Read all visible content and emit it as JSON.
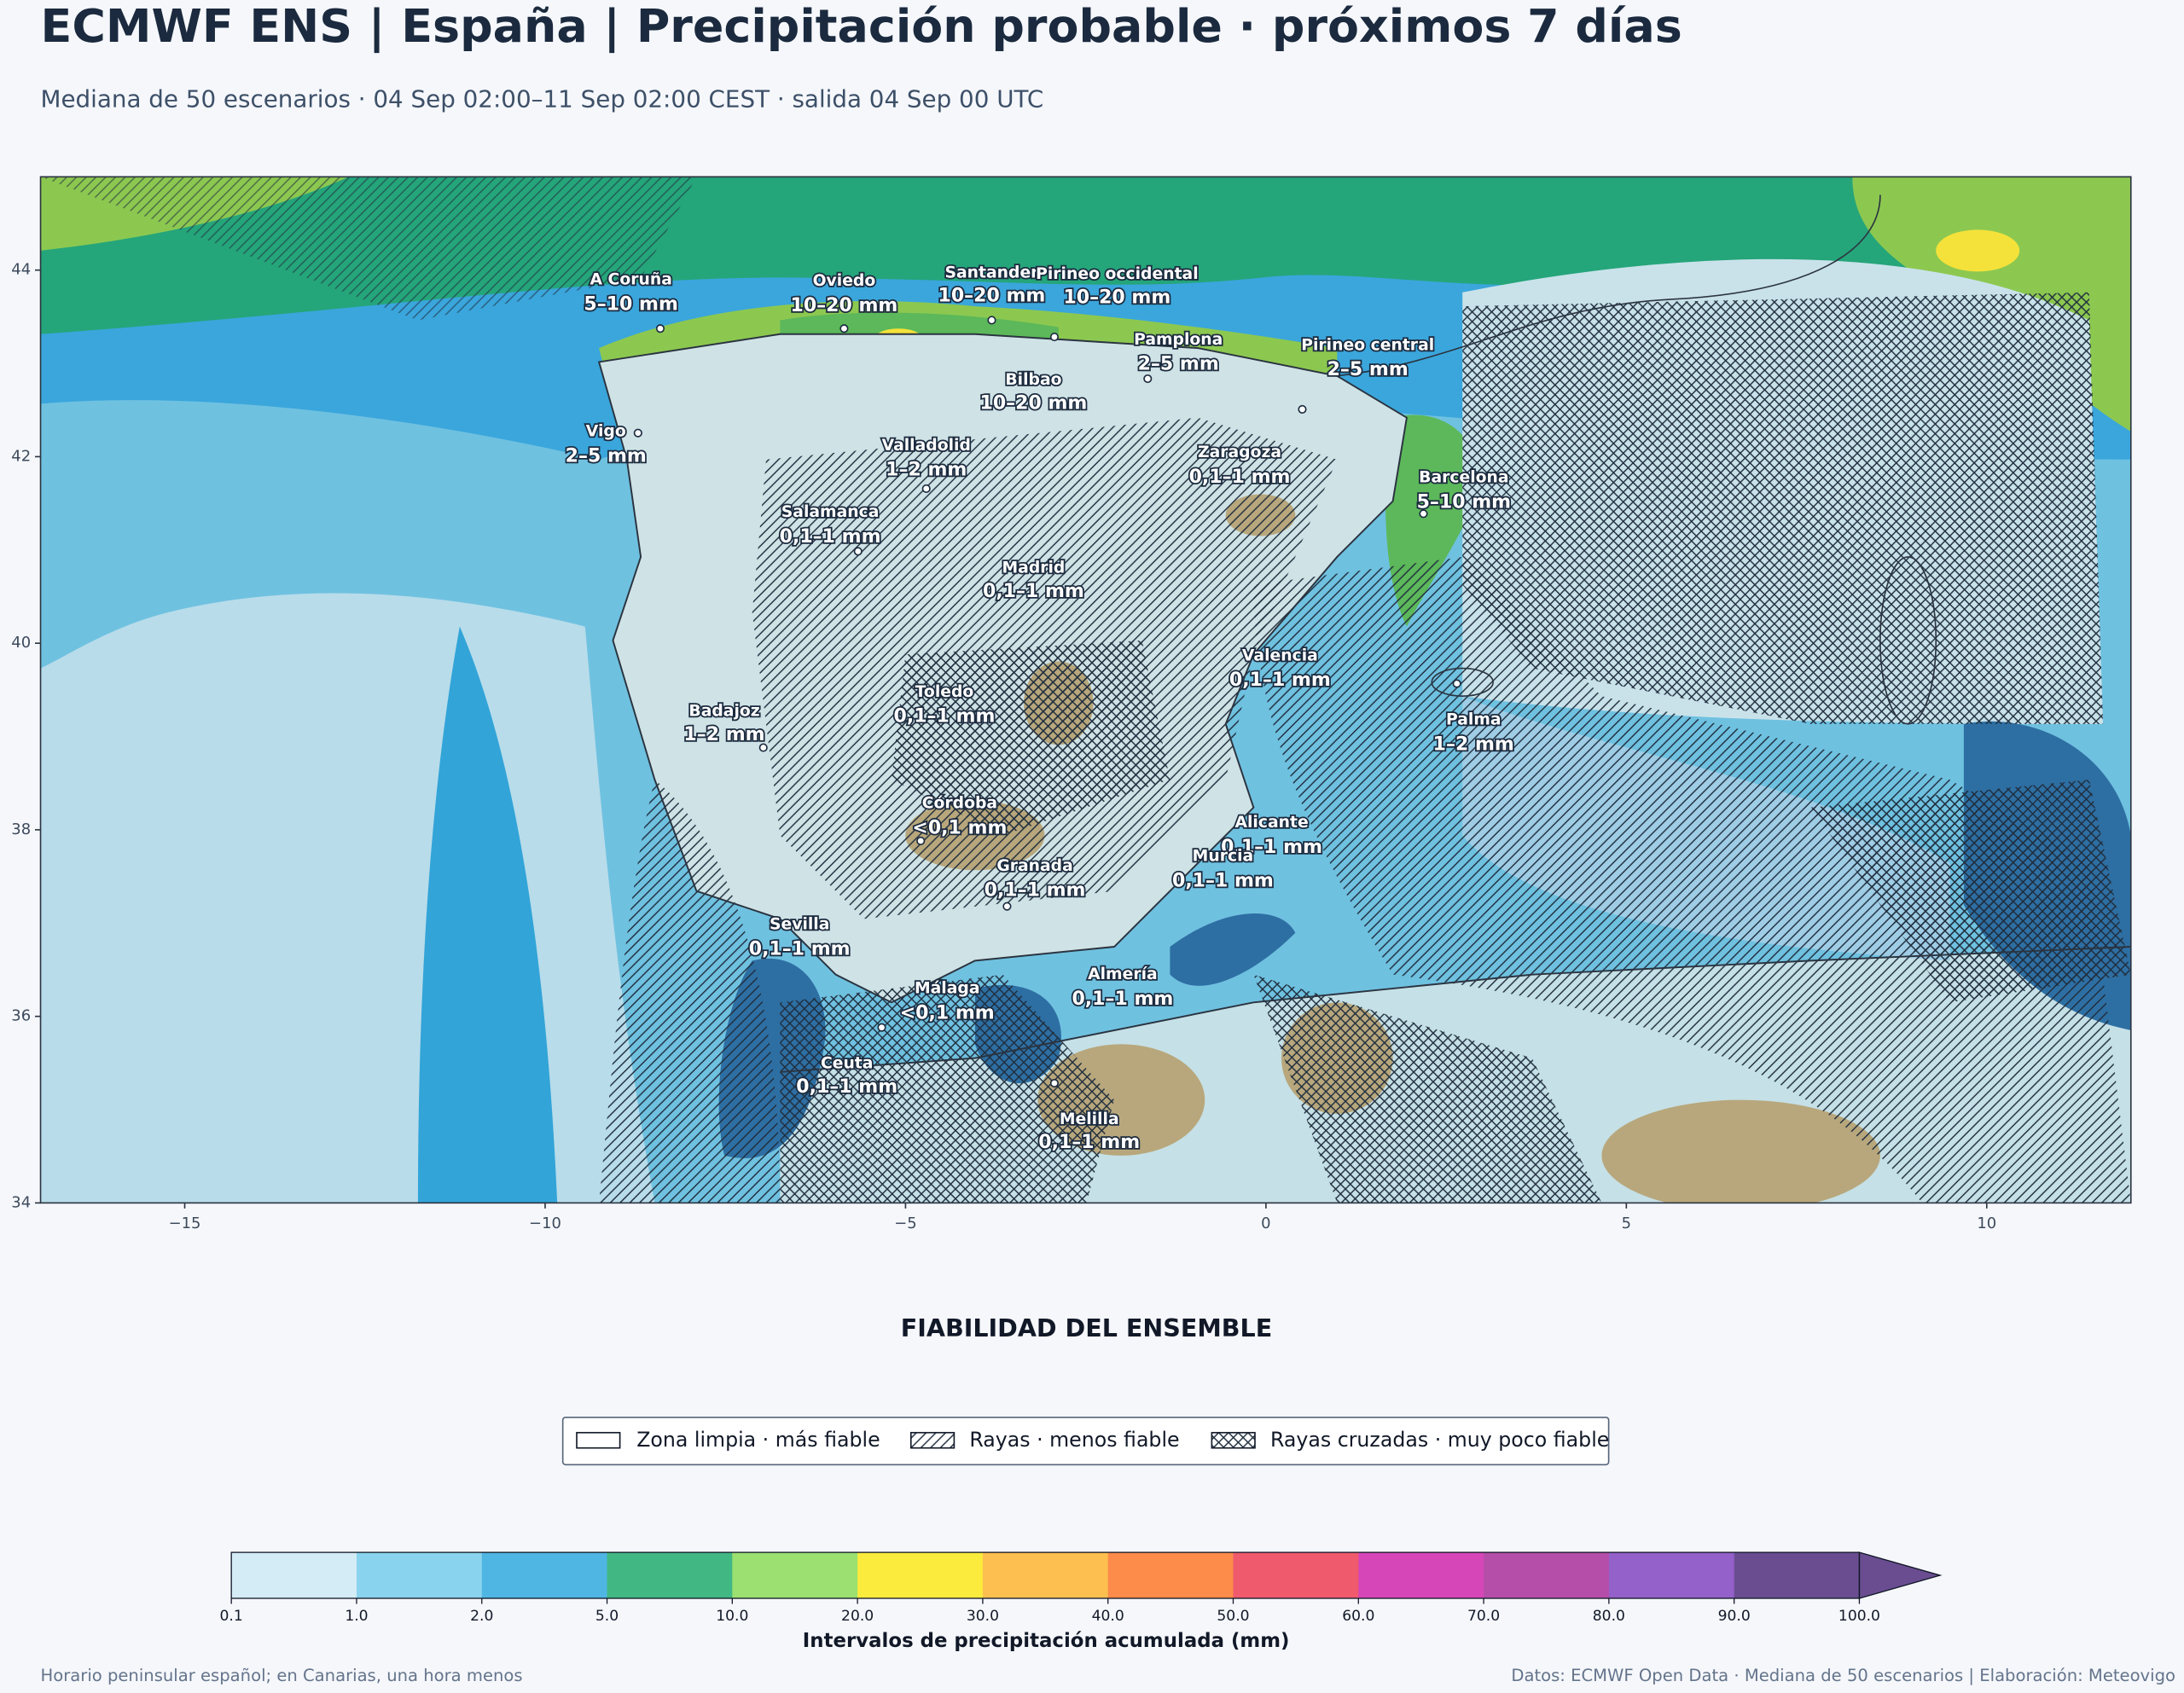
{
  "header": {
    "title": "ECMWF ENS | España | Precipitación probable · próximos 7 días",
    "subtitle": "Mediana de 50 escenarios · 04 Sep 02:00–11 Sep 02:00 CEST · salida 04 Sep 00 UTC"
  },
  "map": {
    "xlim": [
      -17,
      12
    ],
    "ylim": [
      34,
      45
    ],
    "xticks": [
      {
        "value": -15,
        "label": "−15"
      },
      {
        "value": -10,
        "label": "−10"
      },
      {
        "value": -5,
        "label": "−5"
      },
      0,
      5,
      10
    ],
    "yticks": [
      34,
      36,
      38,
      40,
      42,
      44
    ],
    "cities": [
      {
        "name": "A Coruña",
        "value": "5–10 mm"
      },
      {
        "name": "Oviedo",
        "value": "10–20 mm"
      },
      {
        "name": "Santander",
        "value": "10–20 mm"
      },
      {
        "name": "Pirineo occidental",
        "value": "10–20 mm"
      },
      {
        "name": "Pamplona",
        "value": "2–5 mm"
      },
      {
        "name": "Pirineo central",
        "value": "2–5 mm"
      },
      {
        "name": "Bilbao",
        "value": "10–20 mm"
      },
      {
        "name": "Vigo",
        "value": "2–5 mm"
      },
      {
        "name": "Valladolid",
        "value": "1–2 mm"
      },
      {
        "name": "Zaragoza",
        "value": "0,1–1 mm"
      },
      {
        "name": "Barcelona",
        "value": "5–10 mm"
      },
      {
        "name": "Salamanca",
        "value": "0,1–1 mm"
      },
      {
        "name": "Madrid",
        "value": "0,1–1 mm"
      },
      {
        "name": "Valencia",
        "value": "0,1–1 mm"
      },
      {
        "name": "Toledo",
        "value": "0,1–1 mm"
      },
      {
        "name": "Badajoz",
        "value": "1–2 mm"
      },
      {
        "name": "Palma",
        "value": "1–2 mm"
      },
      {
        "name": "Córdoba",
        "value": "<0,1 mm"
      },
      {
        "name": "Alicante",
        "value": "0,1–1 mm"
      },
      {
        "name": "Murcia",
        "value": "0,1–1 mm"
      },
      {
        "name": "Granada",
        "value": "0,1–1 mm"
      },
      {
        "name": "Sevilla",
        "value": "0,1–1 mm"
      },
      {
        "name": "Málaga",
        "value": "<0,1 mm"
      },
      {
        "name": "Almería",
        "value": "0,1–1 mm"
      },
      {
        "name": "Ceuta",
        "value": "0,1–1 mm"
      },
      {
        "name": "Melilla",
        "value": "0,1–1 mm"
      }
    ]
  },
  "reliability": {
    "title": "FIABILIDAD DEL ENSEMBLE",
    "items": [
      "Zona limpia · más fiable",
      "Rayas · menos fiable",
      "Rayas cruzadas · muy poco fiable"
    ]
  },
  "colorbar": {
    "ticks": [
      0.1,
      {
        "value": 1,
        "label": "1.0"
      },
      {
        "value": 2,
        "label": "2.0"
      },
      {
        "value": 5,
        "label": "5.0"
      },
      {
        "value": 10,
        "label": "10.0"
      },
      {
        "value": 20,
        "label": "20.0"
      },
      {
        "value": 30,
        "label": "30.0"
      },
      {
        "value": 40,
        "label": "40.0"
      },
      {
        "value": 50,
        "label": "50.0"
      },
      {
        "value": 60,
        "label": "60.0"
      },
      {
        "value": 70,
        "label": "70.0"
      },
      {
        "value": 80,
        "label": "80.0"
      },
      {
        "value": 90,
        "label": "90.0"
      },
      {
        "value": 100,
        "label": "100.0"
      }
    ],
    "colors": [
      "#d4ecf5",
      "#8ad3ee",
      "#4fb6e3",
      "#41b883",
      "#9be070",
      "#fbeb3c",
      "#fdbf4f",
      "#fd8b4a",
      "#ef5a6c",
      "#d646b8",
      "#b54ea8",
      "#9460c9",
      "#6a4d91"
    ],
    "label": "Intervalos de precipitación acumulada (mm)"
  },
  "footer": {
    "left": "Horario peninsular español; en Canarias, una hora menos",
    "right": "Datos: ECMWF Open Data · Mediana de 50 escenarios | Elaboración: Meteovigo"
  }
}
